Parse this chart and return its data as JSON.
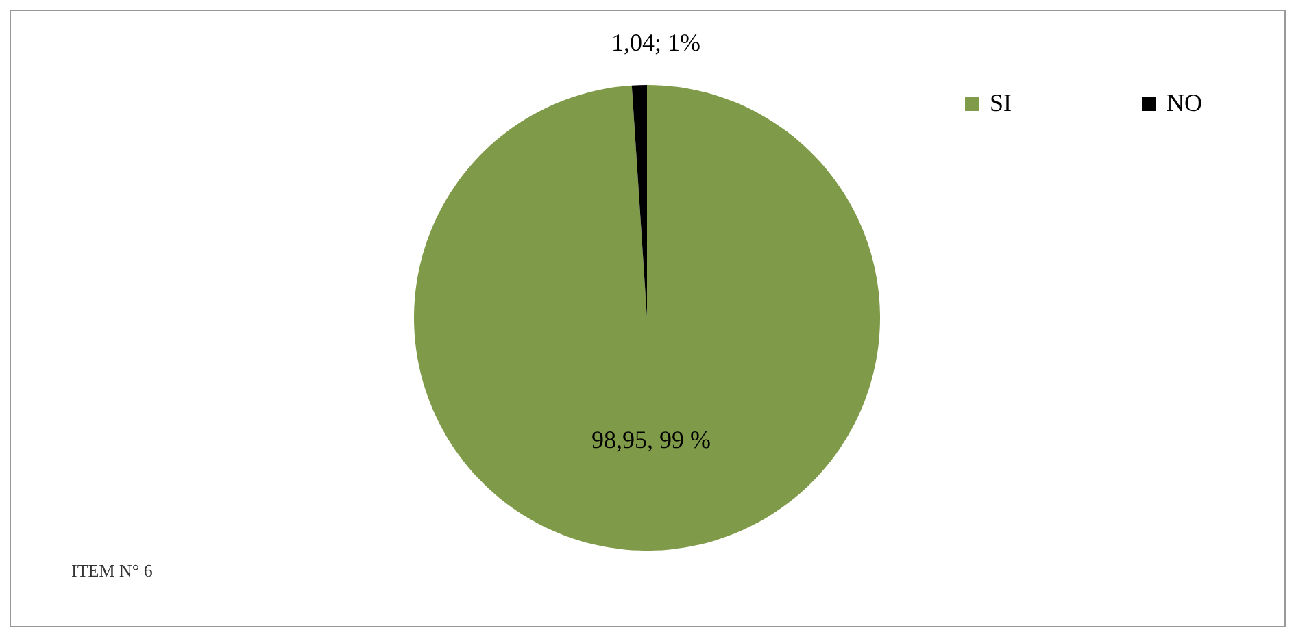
{
  "chart_data": {
    "type": "pie",
    "categories": [
      "SI",
      "NO"
    ],
    "values": [
      98.95,
      1.04
    ],
    "colors": [
      "#7f9a48",
      "#000000"
    ],
    "value_labels": [
      "98,95, 99 %",
      "1,04; 1%"
    ],
    "legend": "top right",
    "annotations": [
      "ITEM N° 6"
    ]
  }
}
